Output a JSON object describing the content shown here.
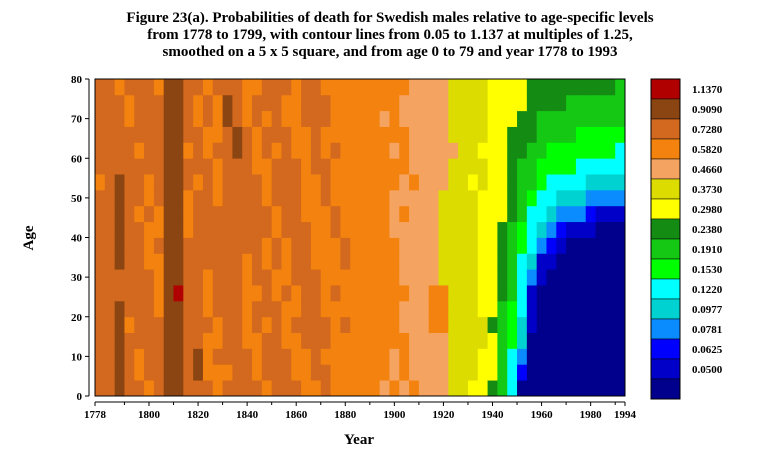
{
  "title_lines": [
    "Figure 23(a). Probabilities of death for Swedish males relative to age-specific levels",
    "from 1778 to 1799, with contour lines from 0.05 to 1.137 at multiples of 1.25,",
    "smoothed on a 5 x 5 square, and from age 0 to 79 and year 1778 to 1993"
  ],
  "chart_data": {
    "type": "heatmap",
    "xlabel": "Year",
    "ylabel": "Age",
    "xlim": [
      1778,
      1994
    ],
    "ylim": [
      0,
      80
    ],
    "x_ticks": [
      "1778",
      "1800",
      "1820",
      "1840",
      "1860",
      "1880",
      "1900",
      "1920",
      "1940",
      "1960",
      "1980",
      "1994"
    ],
    "x_tick_values": [
      1778,
      1800,
      1820,
      1840,
      1860,
      1880,
      1900,
      1920,
      1940,
      1960,
      1980,
      1994
    ],
    "y_ticks": [
      "0",
      "10",
      "20",
      "30",
      "40",
      "50",
      "60",
      "70",
      "80"
    ],
    "y_tick_values": [
      0,
      10,
      20,
      30,
      40,
      50,
      60,
      70,
      80
    ],
    "legend": [
      {
        "label": "1.1370",
        "color": "#b00000"
      },
      {
        "label": "0.9090",
        "color": "#8b4513"
      },
      {
        "label": "0.7280",
        "color": "#d2691e"
      },
      {
        "label": "0.5820",
        "color": "#f4820e"
      },
      {
        "label": "0.4660",
        "color": "#f4a460"
      },
      {
        "label": "0.3730",
        "color": "#dcdc00"
      },
      {
        "label": "0.2980",
        "color": "#ffff00"
      },
      {
        "label": "0.2380",
        "color": "#148c14"
      },
      {
        "label": "0.1910",
        "color": "#14c814"
      },
      {
        "label": "0.1530",
        "color": "#00ff00"
      },
      {
        "label": "0.1220",
        "color": "#00ffff"
      },
      {
        "label": "0.0977",
        "color": "#00d2d2"
      },
      {
        "label": "0.0781",
        "color": "#0a8cff"
      },
      {
        "label": "0.0625",
        "color": "#0000ff"
      },
      {
        "label": "0.0500",
        "color": "#0000c8"
      },
      {
        "label": "",
        "color": "#00008c"
      }
    ],
    "legend_position": "right",
    "grid": false
  }
}
